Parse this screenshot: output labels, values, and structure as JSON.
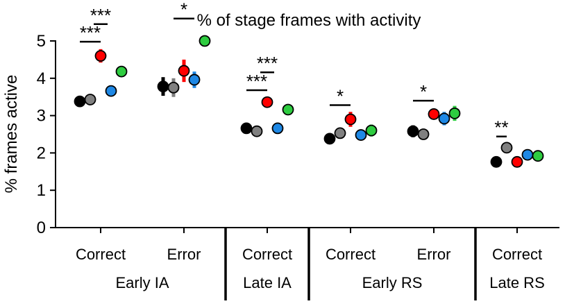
{
  "chart_data": {
    "type": "scatter",
    "title": "% of stage frames with activity",
    "ylabel": "% frames active",
    "ylim": [
      0,
      5
    ],
    "yticks": [
      "0",
      "1",
      "2",
      "3",
      "4",
      "5"
    ],
    "groups": [
      {
        "sublabel": "Correct",
        "stage": "Early IA",
        "points": [
          {
            "color": "#000000",
            "value": 3.38,
            "err": 0.12
          },
          {
            "color": "#808080",
            "value": 3.43,
            "err": 0.12
          },
          {
            "color": "#ff0000",
            "value": 4.6,
            "err": 0.18
          },
          {
            "color": "#1e88e5",
            "value": 3.66,
            "err": 0.15
          },
          {
            "color": "#2ecc40",
            "value": 4.18,
            "err": 0.14
          }
        ],
        "sig": [
          {
            "label": "***",
            "from": 0,
            "to": 2,
            "level": 4.98
          },
          {
            "label": "***",
            "from": 2,
            "to": 2,
            "level": 5.45
          }
        ]
      },
      {
        "sublabel": "Error",
        "stage": "Early IA",
        "points": [
          {
            "color": "#000000",
            "value": 3.78,
            "err": 0.25
          },
          {
            "color": "#808080",
            "value": 3.75,
            "err": 0.25
          },
          {
            "color": "#ff0000",
            "value": 4.2,
            "err": 0.3
          },
          {
            "color": "#1e88e5",
            "value": 3.96,
            "err": 0.22
          },
          {
            "color": "#2ecc40",
            "value": 5.0,
            "err": 0.12
          }
        ],
        "sig": [
          {
            "label": "*",
            "from": 1,
            "to": 3,
            "level": 5.6
          }
        ]
      },
      {
        "sublabel": "Correct",
        "stage": "Late IA",
        "points": [
          {
            "color": "#000000",
            "value": 2.66,
            "err": 0.06
          },
          {
            "color": "#808080",
            "value": 2.58,
            "err": 0.06
          },
          {
            "color": "#ff0000",
            "value": 3.36,
            "err": 0.12
          },
          {
            "color": "#1e88e5",
            "value": 2.66,
            "err": 0.06
          },
          {
            "color": "#2ecc40",
            "value": 3.16,
            "err": 0.08
          }
        ],
        "sig": [
          {
            "label": "***",
            "from": 0,
            "to": 2,
            "level": 3.68
          },
          {
            "label": "***",
            "from": 2,
            "to": 2,
            "level": 4.16
          }
        ]
      },
      {
        "sublabel": "Correct",
        "stage": "Early RS",
        "points": [
          {
            "color": "#000000",
            "value": 2.38,
            "err": 0.14
          },
          {
            "color": "#808080",
            "value": 2.53,
            "err": 0.14
          },
          {
            "color": "#ff0000",
            "value": 2.9,
            "err": 0.2
          },
          {
            "color": "#1e88e5",
            "value": 2.48,
            "err": 0.14
          },
          {
            "color": "#2ecc40",
            "value": 2.6,
            "err": 0.16
          }
        ],
        "sig": [
          {
            "label": "*",
            "from": 0,
            "to": 2,
            "level": 3.28
          }
        ]
      },
      {
        "sublabel": "Error",
        "stage": "Early RS",
        "points": [
          {
            "color": "#000000",
            "value": 2.58,
            "err": 0.16
          },
          {
            "color": "#808080",
            "value": 2.5,
            "err": 0.12
          },
          {
            "color": "#ff0000",
            "value": 3.04,
            "err": 0.14
          },
          {
            "color": "#1e88e5",
            "value": 2.92,
            "err": 0.18
          },
          {
            "color": "#2ecc40",
            "value": 3.06,
            "err": 0.2
          }
        ],
        "sig": [
          {
            "label": "*",
            "from": 0,
            "to": 2,
            "level": 3.4
          }
        ]
      },
      {
        "sublabel": "Correct",
        "stage": "Late RS",
        "points": [
          {
            "color": "#000000",
            "value": 1.76,
            "err": 0.03
          },
          {
            "color": "#808080",
            "value": 2.14,
            "err": 0.04
          },
          {
            "color": "#ff0000",
            "value": 1.76,
            "err": 0.03
          },
          {
            "color": "#1e88e5",
            "value": 1.95,
            "err": 0.04
          },
          {
            "color": "#2ecc40",
            "value": 1.92,
            "err": 0.04
          }
        ],
        "sig": [
          {
            "label": "**",
            "from": 0,
            "to": 1,
            "level": 2.44
          }
        ]
      }
    ],
    "stages": [
      {
        "label": "Early IA",
        "groups": [
          0,
          1
        ]
      },
      {
        "label": "Late IA",
        "groups": [
          2,
          2
        ]
      },
      {
        "label": "Early RS",
        "groups": [
          3,
          4
        ]
      },
      {
        "label": "Late RS",
        "groups": [
          5,
          5
        ]
      }
    ],
    "separators_after_groups": [
      1,
      2,
      4
    ]
  }
}
